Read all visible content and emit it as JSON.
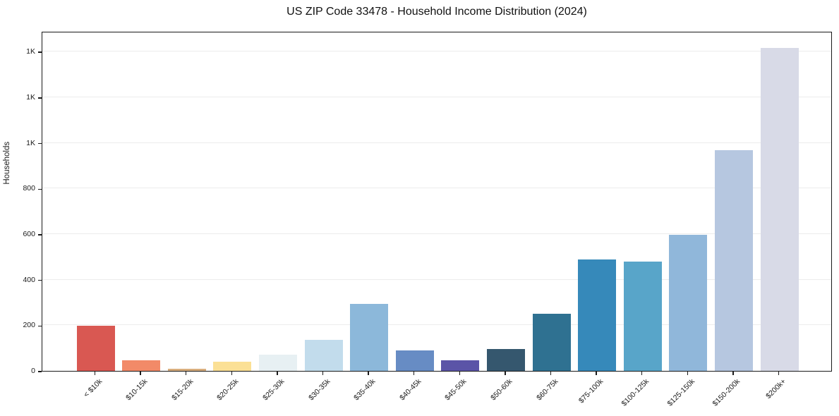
{
  "title": "US ZIP Code 33478 - Household Income Distribution (2024)",
  "chart_data": {
    "type": "bar",
    "title": "US ZIP Code 33478 - Household Income Distribution (2024)",
    "xlabel": "",
    "ylabel": "Households",
    "categories": [
      "< $10k",
      "$10-15k",
      "$15-20k",
      "$20-25k",
      "$25-30k",
      "$30-35k",
      "$35-40k",
      "$40-45k",
      "$45-50k",
      "$50-60k",
      "$60-75k",
      "$75-100k",
      "$100-125k",
      "$125-150k",
      "$150-200k",
      "$200k+"
    ],
    "values": [
      197,
      46,
      8,
      40,
      70,
      136,
      293,
      90,
      46,
      96,
      250,
      490,
      478,
      596,
      968,
      1416
    ],
    "bar_colors": [
      "#d95852",
      "#f28a68",
      "#d9ae7e",
      "#fbe095",
      "#e7f0f3",
      "#c2dcec",
      "#8cb8da",
      "#678cc4",
      "#5b54a7",
      "#35576e",
      "#2f7191",
      "#3689ba",
      "#58a5c9",
      "#90b7da",
      "#b6c7e0",
      "#d8dae7"
    ],
    "ylim": [
      0,
      1490
    ],
    "yticks": {
      "values": [
        0,
        200,
        400,
        600,
        800,
        1000,
        1200,
        1400
      ],
      "labels": [
        "0",
        "200",
        "400",
        "600",
        "800",
        "1K",
        "1K",
        "1K"
      ]
    },
    "grid": "horizontal",
    "legend": "none",
    "background_color": "#ffffff",
    "spine_color": "#1a1a1a",
    "gridline_color": "#ececec",
    "text_color": "#111111"
  }
}
